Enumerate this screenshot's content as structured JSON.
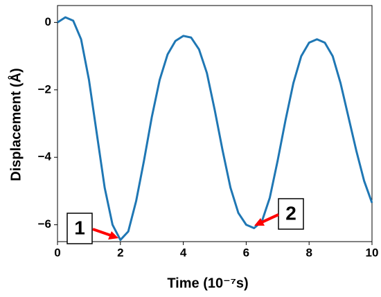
{
  "chart_data": {
    "type": "line",
    "x_label": "Time (10⁻⁷s)",
    "y_label": "Displacement (Å)",
    "x": [
      0,
      0.25,
      0.5,
      0.75,
      1,
      1.25,
      1.5,
      1.75,
      2,
      2.25,
      2.5,
      2.75,
      3,
      3.25,
      3.5,
      3.75,
      4,
      4.25,
      4.5,
      4.75,
      5,
      5.25,
      5.5,
      5.75,
      6,
      6.25,
      6.5,
      6.75,
      7,
      7.25,
      7.5,
      7.75,
      8,
      8.25,
      8.5,
      8.75,
      9,
      9.25,
      9.5,
      9.75,
      10
    ],
    "series": [
      {
        "color": "#1f77b4",
        "values": [
          0,
          0.15,
          0.05,
          -0.5,
          -1.7,
          -3.3,
          -4.9,
          -6.0,
          -6.45,
          -6.2,
          -5.3,
          -4.1,
          -2.8,
          -1.7,
          -0.95,
          -0.55,
          -0.4,
          -0.45,
          -0.8,
          -1.5,
          -2.6,
          -3.8,
          -4.9,
          -5.65,
          -6.0,
          -6.1,
          -5.9,
          -5.2,
          -4.1,
          -2.9,
          -1.8,
          -1.0,
          -0.6,
          -0.5,
          -0.6,
          -1.0,
          -1.8,
          -2.8,
          -3.8,
          -4.7,
          -5.35
        ]
      }
    ],
    "xlim": [
      0,
      10
    ],
    "xticks": [
      0,
      2,
      4,
      6,
      8,
      10
    ],
    "ylim": [
      -6.5,
      0.5
    ],
    "yticks": [
      {
        "value": -6,
        "label": "−6"
      },
      {
        "value": -4,
        "label": "−4"
      },
      {
        "value": -2,
        "label": "−2"
      },
      0
    ],
    "annotations": [
      "1",
      "2"
    ]
  }
}
